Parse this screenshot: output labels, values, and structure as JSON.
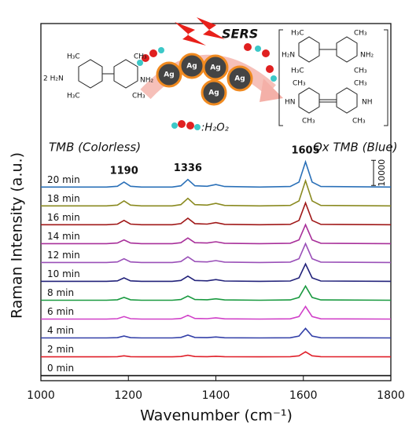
{
  "chart_data": {
    "type": "line",
    "xlabel": "Wavenumber (cm⁻¹)",
    "ylabel": "Raman Intensity (a.u.)",
    "xlim": [
      1000,
      1800
    ],
    "xticks": [
      1000,
      1200,
      1400,
      1600,
      1800
    ],
    "ylim": [
      0,
      142000
    ],
    "x": [
      1000,
      1150,
      1175,
      1190,
      1205,
      1230,
      1300,
      1320,
      1336,
      1352,
      1380,
      1400,
      1420,
      1500,
      1570,
      1590,
      1605,
      1620,
      1640,
      1800
    ],
    "series": [
      {
        "name": "0 min",
        "color": "#111111",
        "values": [
          2000,
          2000,
          2000,
          2000,
          2000,
          2000,
          2000,
          2000,
          2000,
          2000,
          2000,
          2000,
          2000,
          2000,
          2000,
          2000,
          2000,
          2000,
          2000,
          2000
        ]
      },
      {
        "name": "2 min",
        "color": "#e0202a",
        "values": [
          9500,
          9500,
          9560,
          9900,
          9560,
          9500,
          9500,
          9600,
          10100,
          9600,
          9560,
          9700,
          9540,
          9500,
          9540,
          9900,
          11500,
          9900,
          9540,
          9500
        ]
      },
      {
        "name": "4 min",
        "color": "#3340a8",
        "values": [
          17000,
          17000,
          17110,
          17760,
          17110,
          17000,
          17000,
          17190,
          18140,
          17190,
          17110,
          17380,
          17080,
          17000,
          17080,
          17760,
          20800,
          17760,
          17080,
          17000
        ]
      },
      {
        "name": "6 min",
        "color": "#d040c8",
        "values": [
          24500,
          24500,
          24650,
          25500,
          24650,
          24500,
          24500,
          24750,
          26000,
          24750,
          24650,
          25000,
          24600,
          24500,
          24600,
          25500,
          29500,
          25500,
          24600,
          24500
        ]
      },
      {
        "name": "8 min",
        "color": "#1a9a40",
        "values": [
          32000,
          32000,
          32170,
          33120,
          32170,
          32000,
          32000,
          32280,
          33680,
          32280,
          32170,
          32560,
          32110,
          32000,
          32110,
          33120,
          37600,
          33120,
          32110,
          32000
        ]
      },
      {
        "name": "10 min",
        "color": "#22227a",
        "values": [
          39500,
          39500,
          39710,
          40880,
          39710,
          39500,
          39500,
          39850,
          41570,
          39850,
          39710,
          40190,
          39640,
          39500,
          39640,
          40880,
          46400,
          40880,
          39640,
          39500
        ]
      },
      {
        "name": "12 min",
        "color": "#9a50b8",
        "values": [
          47000,
          47000,
          47230,
          48500,
          47230,
          47000,
          47000,
          47380,
          49250,
          47380,
          47230,
          47750,
          47150,
          47000,
          47150,
          48500,
          54500,
          48500,
          47150,
          47000
        ]
      },
      {
        "name": "14 min",
        "color": "#a8309a",
        "values": [
          54500,
          54500,
          54730,
          56000,
          54730,
          54500,
          54500,
          54880,
          56750,
          54880,
          54730,
          55250,
          54650,
          54500,
          54650,
          56000,
          62000,
          56000,
          54650,
          54500
        ]
      },
      {
        "name": "16 min",
        "color": "#a01818",
        "values": [
          62000,
          62000,
          62260,
          63740,
          62260,
          62000,
          62000,
          62440,
          64610,
          62440,
          62260,
          62870,
          62170,
          62000,
          62170,
          63740,
          70700,
          63740,
          62170,
          62000
        ]
      },
      {
        "name": "18 min",
        "color": "#8a8a20",
        "values": [
          69500,
          69500,
          69800,
          71500,
          69800,
          69500,
          69500,
          70000,
          72500,
          70000,
          69800,
          70500,
          69700,
          69500,
          69700,
          71500,
          79500,
          71500,
          69700,
          69500
        ]
      },
      {
        "name": "20 min",
        "color": "#2a70b8",
        "values": [
          77000,
          77000,
          77300,
          79000,
          77300,
          77000,
          77000,
          77500,
          80000,
          77500,
          77300,
          78000,
          77200,
          77000,
          77200,
          79000,
          87000,
          79000,
          77200,
          77000
        ]
      }
    ],
    "peak_labels": [
      1190,
      1336,
      1605
    ],
    "scale_bar": 10000,
    "annotations": [
      "TMB (Colorless)",
      "Ox TMB (Blue)"
    ]
  },
  "inset": {
    "title": "SERS",
    "particles": [
      "Ag",
      "Ag",
      "Ag",
      "Ag",
      "Ag"
    ],
    "oxidant_label": ":H₂O₂",
    "reactant_labels": [
      "H₃C",
      "CH₃",
      "2 H₂N",
      "NH₂",
      "H₃C",
      "CH₃"
    ],
    "product_labels": [
      "H₃C",
      "CH₃",
      "H₂N",
      "NH₂",
      "H₃C",
      "CH₃",
      "CH₃",
      "CH₃",
      "HN",
      "NH",
      "CH₃",
      "CH₃"
    ]
  }
}
